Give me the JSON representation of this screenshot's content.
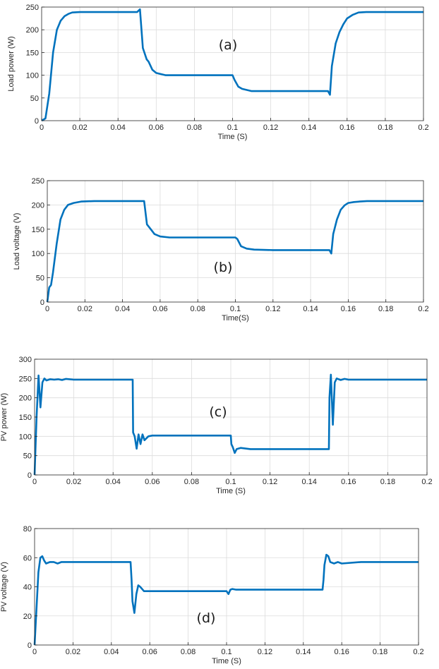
{
  "chart_data": [
    {
      "type": "line",
      "panel_label": "(a)",
      "xlabel": "Time (S)",
      "ylabel": "Load power (W)",
      "xlim": [
        0,
        0.2
      ],
      "ylim": [
        0,
        250
      ],
      "xticks": [
        0,
        0.02,
        0.04,
        0.06,
        0.08,
        0.1,
        0.12,
        0.14,
        0.16,
        0.18,
        0.2
      ],
      "yticks": [
        0,
        50,
        100,
        150,
        200,
        250
      ],
      "grid": true,
      "color": "#0072BD",
      "x": [
        0,
        0.002,
        0.004,
        0.006,
        0.008,
        0.01,
        0.012,
        0.014,
        0.016,
        0.02,
        0.03,
        0.045,
        0.05,
        0.0515,
        0.053,
        0.055,
        0.056,
        0.058,
        0.06,
        0.065,
        0.08,
        0.1,
        0.101,
        0.103,
        0.105,
        0.11,
        0.12,
        0.14,
        0.15,
        0.151,
        0.152,
        0.154,
        0.156,
        0.158,
        0.16,
        0.163,
        0.166,
        0.17,
        0.18,
        0.2
      ],
      "y": [
        0,
        5,
        60,
        150,
        200,
        220,
        230,
        235,
        238,
        239,
        239,
        239,
        239,
        245,
        160,
        135,
        130,
        112,
        105,
        100,
        100,
        100,
        90,
        75,
        70,
        65,
        65,
        65,
        65,
        57,
        120,
        170,
        195,
        212,
        225,
        233,
        238,
        239,
        239,
        239
      ]
    },
    {
      "type": "line",
      "panel_label": "(b)",
      "xlabel": "Time(S)",
      "ylabel": "Load voltage (V)",
      "xlim": [
        0,
        0.2
      ],
      "ylim": [
        0,
        250
      ],
      "xticks": [
        0,
        0.02,
        0.04,
        0.06,
        0.08,
        0.1,
        0.12,
        0.14,
        0.16,
        0.18,
        0.2
      ],
      "yticks": [
        0,
        50,
        100,
        150,
        200,
        250
      ],
      "grid": true,
      "color": "#0072BD",
      "x": [
        0,
        0.001,
        0.002,
        0.003,
        0.005,
        0.007,
        0.009,
        0.011,
        0.014,
        0.018,
        0.025,
        0.04,
        0.05,
        0.0515,
        0.053,
        0.055,
        0.057,
        0.06,
        0.065,
        0.08,
        0.1,
        0.101,
        0.103,
        0.106,
        0.11,
        0.12,
        0.14,
        0.15,
        0.151,
        0.152,
        0.154,
        0.156,
        0.158,
        0.16,
        0.163,
        0.166,
        0.17,
        0.18,
        0.2
      ],
      "y": [
        0,
        30,
        35,
        60,
        120,
        170,
        190,
        200,
        204,
        207,
        208,
        208,
        208,
        208,
        160,
        150,
        140,
        135,
        133,
        133,
        133,
        130,
        115,
        110,
        108,
        107,
        107,
        107,
        100,
        140,
        170,
        190,
        199,
        204,
        206,
        207,
        208,
        208,
        208
      ]
    },
    {
      "type": "line",
      "panel_label": "(c)",
      "xlabel": "Time (S)",
      "ylabel": "PV power (W)",
      "xlim": [
        0,
        0.2
      ],
      "ylim": [
        0,
        300
      ],
      "xticks": [
        0,
        0.02,
        0.04,
        0.06,
        0.08,
        0.1,
        0.12,
        0.14,
        0.16,
        0.18,
        0.2
      ],
      "yticks": [
        0,
        50,
        100,
        150,
        200,
        250,
        300
      ],
      "grid": true,
      "color": "#0072BD",
      "x": [
        0,
        0.001,
        0.002,
        0.003,
        0.004,
        0.005,
        0.006,
        0.008,
        0.01,
        0.012,
        0.014,
        0.016,
        0.02,
        0.04,
        0.05,
        0.0502,
        0.051,
        0.052,
        0.053,
        0.054,
        0.055,
        0.056,
        0.058,
        0.06,
        0.07,
        0.1,
        0.1003,
        0.101,
        0.102,
        0.103,
        0.105,
        0.11,
        0.14,
        0.15,
        0.1503,
        0.151,
        0.152,
        0.153,
        0.154,
        0.156,
        0.158,
        0.16,
        0.17,
        0.2
      ],
      "y": [
        0,
        150,
        258,
        175,
        240,
        250,
        245,
        248,
        247,
        248,
        246,
        249,
        247,
        247,
        247,
        110,
        100,
        68,
        105,
        80,
        105,
        90,
        100,
        102,
        102,
        102,
        80,
        72,
        57,
        67,
        70,
        67,
        67,
        67,
        200,
        260,
        130,
        240,
        250,
        246,
        249,
        247,
        247,
        247
      ]
    },
    {
      "type": "line",
      "panel_label": "(d)",
      "xlabel": "Time (S)",
      "ylabel": "PV voltage (V)",
      "xlim": [
        0,
        0.2
      ],
      "ylim": [
        0,
        80
      ],
      "xticks": [
        0,
        0.02,
        0.04,
        0.06,
        0.08,
        0.1,
        0.12,
        0.14,
        0.16,
        0.18,
        0.2
      ],
      "yticks": [
        0,
        20,
        40,
        60,
        80
      ],
      "grid": true,
      "color": "#0072BD",
      "x": [
        0,
        0.002,
        0.003,
        0.004,
        0.005,
        0.006,
        0.008,
        0.01,
        0.012,
        0.014,
        0.016,
        0.02,
        0.04,
        0.05,
        0.0505,
        0.051,
        0.052,
        0.053,
        0.054,
        0.055,
        0.057,
        0.06,
        0.08,
        0.1,
        0.101,
        0.102,
        0.103,
        0.105,
        0.11,
        0.13,
        0.15,
        0.1505,
        0.151,
        0.152,
        0.153,
        0.154,
        0.156,
        0.158,
        0.16,
        0.17,
        0.2
      ],
      "y": [
        0,
        50,
        60,
        61,
        58,
        56,
        57,
        57,
        56,
        57,
        57,
        57,
        57,
        57,
        45,
        30,
        22,
        35,
        41,
        40,
        37,
        37,
        37,
        37,
        35,
        38,
        38.5,
        38,
        38,
        38,
        38,
        45,
        55,
        62,
        61,
        57,
        56,
        57,
        56,
        57,
        57
      ]
    }
  ]
}
